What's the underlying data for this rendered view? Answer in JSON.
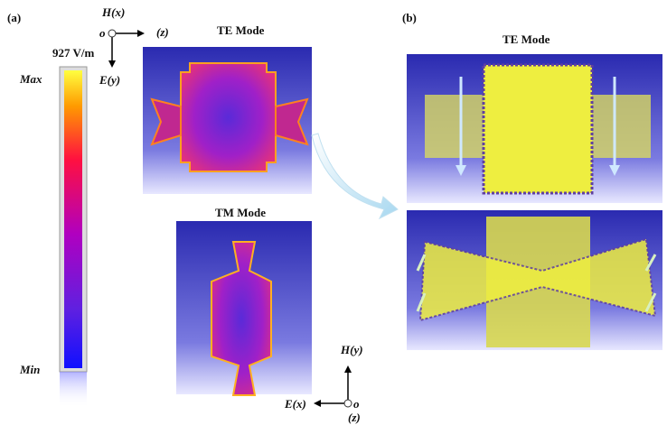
{
  "panel_a": {
    "label": "(a)",
    "colorbar": {
      "value_label": "927 V/m",
      "max": "Max",
      "min": "Min"
    },
    "axes_te": {
      "h": "H(x)",
      "origin": "o",
      "z": "(z)",
      "e": "E(y)"
    },
    "te_title": "TE Mode",
    "tm_title": "TM Mode",
    "axes_tm": {
      "h": "H(y)",
      "e": "E(x)",
      "origin": "o",
      "z": "(z)"
    }
  },
  "panel_b": {
    "label": "(b)",
    "te_title": "TE Mode"
  }
}
